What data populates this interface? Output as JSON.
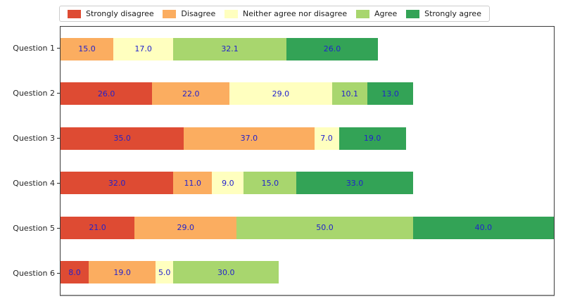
{
  "colors": {
    "strongly_disagree": "#de4b33",
    "disagree": "#fbad60",
    "neither": "#ffffbf",
    "agree": "#a8d66e",
    "strongly_agree": "#33a356",
    "value_label": "#2222cc",
    "axis_text": "#262626",
    "legend_border": "#cccccc"
  },
  "chart_data": {
    "type": "bar",
    "orientation": "horizontal",
    "stacked": true,
    "title": "",
    "xlabel": "",
    "ylabel": "",
    "xlim": [
      0,
      140
    ],
    "grid": false,
    "legend_position": "top",
    "value_labels_shown": true,
    "value_label_color": "#2222cc",
    "categories": [
      "Question 1",
      "Question 2",
      "Question 3",
      "Question 4",
      "Question 5",
      "Question 6"
    ],
    "series": [
      {
        "name": "Strongly disagree",
        "color": "#de4b33",
        "values": [
          0,
          26.0,
          35.0,
          32.0,
          21.0,
          8.0
        ]
      },
      {
        "name": "Disagree",
        "color": "#fbad60",
        "values": [
          15.0,
          22.0,
          37.0,
          11.0,
          29.0,
          19.0
        ]
      },
      {
        "name": "Neither agree nor disagree",
        "color": "#ffffbf",
        "values": [
          17.0,
          29.0,
          7.0,
          9.0,
          0,
          5.0
        ]
      },
      {
        "name": "Agree",
        "color": "#a8d66e",
        "values": [
          32.1,
          10.1,
          0,
          15.0,
          50.0,
          30.0
        ]
      },
      {
        "name": "Strongly agree",
        "color": "#33a356",
        "values": [
          26.0,
          13.0,
          19.0,
          33.0,
          40.0,
          0
        ]
      }
    ]
  }
}
